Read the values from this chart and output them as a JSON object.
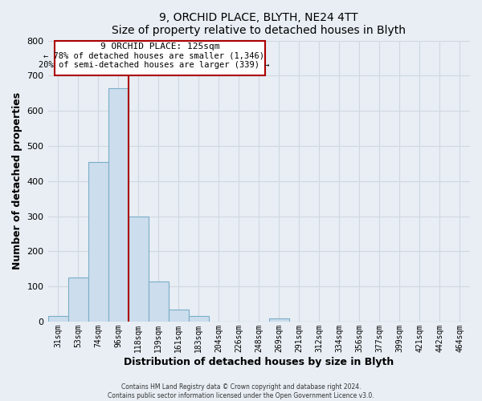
{
  "title": "9, ORCHID PLACE, BLYTH, NE24 4TT",
  "subtitle": "Size of property relative to detached houses in Blyth",
  "xlabel": "Distribution of detached houses by size in Blyth",
  "ylabel": "Number of detached properties",
  "bar_color": "#ccdded",
  "bar_edge_color": "#7aaec8",
  "bin_labels": [
    "31sqm",
    "53sqm",
    "74sqm",
    "96sqm",
    "118sqm",
    "139sqm",
    "161sqm",
    "183sqm",
    "204sqm",
    "226sqm",
    "248sqm",
    "269sqm",
    "291sqm",
    "312sqm",
    "334sqm",
    "356sqm",
    "377sqm",
    "399sqm",
    "421sqm",
    "442sqm",
    "464sqm"
  ],
  "bar_values": [
    15,
    125,
    455,
    665,
    300,
    115,
    35,
    15,
    0,
    0,
    0,
    8,
    0,
    0,
    0,
    0,
    0,
    0,
    0,
    0,
    0
  ],
  "ylim": [
    0,
    800
  ],
  "yticks": [
    0,
    100,
    200,
    300,
    400,
    500,
    600,
    700,
    800
  ],
  "property_line_x": 4.0,
  "property_line_label": "9 ORCHID PLACE: 125sqm",
  "annotation_line1": "← 78% of detached houses are smaller (1,346)",
  "annotation_line2": "20% of semi-detached houses are larger (339) →",
  "annotation_box_color": "#ffffff",
  "annotation_box_edge_color": "#aa0000",
  "property_line_color": "#aa0000",
  "footer1": "Contains HM Land Registry data © Crown copyright and database right 2024.",
  "footer2": "Contains public sector information licensed under the Open Government Licence v3.0.",
  "background_color": "#e8eef4",
  "plot_bg_color": "#e8eef4",
  "grid_color": "#d0d8e0"
}
